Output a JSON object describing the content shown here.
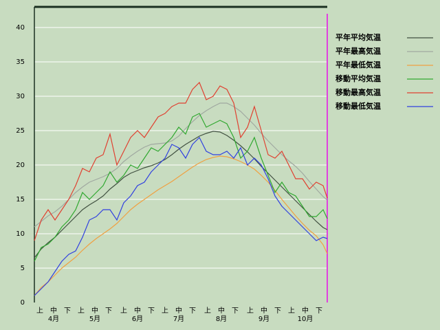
{
  "chart_data": {
    "type": "line",
    "x": [
      0,
      5,
      10,
      15,
      20,
      25,
      30,
      35,
      40,
      45,
      50,
      55,
      60,
      65,
      70,
      75,
      80,
      85,
      90,
      95,
      100,
      105,
      110,
      115,
      120,
      125,
      130,
      135,
      140,
      145,
      150,
      155,
      160,
      165,
      170,
      175,
      180,
      185,
      190,
      195,
      200,
      205,
      210,
      213
    ],
    "xlim": [
      0,
      213
    ],
    "xticks": [
      {
        "value": 4,
        "label": "上"
      },
      {
        "value": 14,
        "label": "中"
      },
      {
        "value": 24,
        "label": "下"
      },
      {
        "value": 34,
        "label": "上"
      },
      {
        "value": 44,
        "label": "中"
      },
      {
        "value": 54,
        "label": "下"
      },
      {
        "value": 65,
        "label": "上"
      },
      {
        "value": 75,
        "label": "中"
      },
      {
        "value": 85,
        "label": "下"
      },
      {
        "value": 95,
        "label": "上"
      },
      {
        "value": 105,
        "label": "中"
      },
      {
        "value": 115,
        "label": "下"
      },
      {
        "value": 126,
        "label": "上"
      },
      {
        "value": 136,
        "label": "中"
      },
      {
        "value": 146,
        "label": "下"
      },
      {
        "value": 157,
        "label": "上"
      },
      {
        "value": 167,
        "label": "中"
      },
      {
        "value": 177,
        "label": "下"
      },
      {
        "value": 187,
        "label": "上"
      },
      {
        "value": 197,
        "label": "中"
      },
      {
        "value": 207,
        "label": "下"
      }
    ],
    "month_ticks": [
      {
        "value": 14,
        "label": "4月"
      },
      {
        "value": 44,
        "label": "5月"
      },
      {
        "value": 75,
        "label": "6月"
      },
      {
        "value": 105,
        "label": "7月"
      },
      {
        "value": 136,
        "label": "8月"
      },
      {
        "value": 167,
        "label": "9月"
      },
      {
        "value": 197,
        "label": "10月"
      }
    ],
    "ylim": [
      0,
      43
    ],
    "yticks": [
      0,
      5,
      10,
      15,
      20,
      25,
      30,
      35,
      40
    ],
    "grid": true,
    "legend": "top-right",
    "series": [
      {
        "name": "平年平均気温",
        "color": "#405040",
        "values": [
          6.5,
          7.8,
          8.7,
          9.5,
          10.5,
          11.5,
          12.5,
          13.5,
          14.2,
          14.8,
          15.5,
          16.5,
          17.3,
          18.2,
          18.8,
          19.2,
          19.6,
          19.9,
          20.3,
          20.8,
          21.5,
          22.3,
          23.0,
          23.6,
          24.2,
          24.6,
          24.9,
          24.8,
          24.3,
          23.6,
          22.8,
          21.9,
          20.9,
          19.8,
          18.8,
          17.8,
          16.8,
          15.8,
          14.8,
          13.8,
          12.8,
          11.8,
          10.9,
          10.6
        ]
      },
      {
        "name": "平年最高気温",
        "color": "#a0a8a0",
        "values": [
          11,
          11.8,
          12.6,
          13.2,
          14,
          15,
          16,
          16.8,
          17.5,
          17.9,
          18.3,
          18.8,
          19.5,
          20.5,
          21.3,
          22,
          22.6,
          23,
          23.1,
          23.2,
          23.5,
          24.2,
          25.3,
          26.3,
          27.2,
          27.9,
          28.5,
          29,
          29,
          28.5,
          27.8,
          26.8,
          25.8,
          24.6,
          23.5,
          22.5,
          21.5,
          20.6,
          19.8,
          18.8,
          17.6,
          16.5,
          15.4,
          14.9
        ]
      },
      {
        "name": "平年最低気温",
        "color": "#f0a040",
        "values": [
          1,
          2.2,
          3,
          4,
          5,
          5.8,
          6.6,
          7.6,
          8.5,
          9.3,
          10,
          10.7,
          11.5,
          12.5,
          13.5,
          14.3,
          15,
          15.7,
          16.4,
          17,
          17.6,
          18.3,
          19,
          19.7,
          20.3,
          20.8,
          21.1,
          21.3,
          21.2,
          20.9,
          20.5,
          20,
          19.4,
          18.5,
          17.5,
          16.3,
          15,
          13.8,
          12.6,
          11.5,
          10.5,
          9.7,
          8.4,
          7.1
        ]
      },
      {
        "name": "移動平均気温",
        "color": "#30a830",
        "values": [
          6,
          8,
          8.5,
          9.5,
          11,
          12,
          13.5,
          16,
          15,
          16,
          17,
          19,
          17.5,
          18.5,
          20,
          19.5,
          21,
          22.5,
          22,
          23,
          24,
          25.5,
          24.5,
          27,
          27.5,
          25.5,
          26,
          26.5,
          26,
          24,
          21,
          22,
          24,
          21,
          18.5,
          16,
          17.5,
          16,
          15.5,
          14,
          12.5,
          12.5,
          13.5,
          12.2
        ]
      },
      {
        "name": "移動最高気温",
        "color": "#e04030",
        "values": [
          9,
          12,
          13.5,
          12,
          13.5,
          15,
          17,
          19.5,
          19,
          21,
          21.5,
          24.5,
          20,
          22,
          24,
          25,
          24,
          25.5,
          27,
          27.5,
          28.5,
          29,
          29,
          31,
          32,
          29.5,
          30,
          31.5,
          31,
          29,
          24,
          25.5,
          28.5,
          25,
          21.5,
          21,
          22,
          20,
          18,
          18,
          16.5,
          17.5,
          17,
          15.2
        ]
      },
      {
        "name": "移動最低気温",
        "color": "#3040e0",
        "values": [
          1,
          2,
          3,
          4.5,
          6,
          7,
          7.5,
          9.5,
          12,
          12.5,
          13.5,
          13.5,
          12,
          14.5,
          15.5,
          17,
          17.5,
          19,
          20,
          21,
          23,
          22.5,
          21,
          23,
          24,
          22,
          21.5,
          21.5,
          22,
          21,
          22.5,
          20,
          21,
          20,
          18,
          15.5,
          14,
          13,
          12,
          11,
          10,
          9,
          9.5,
          9.3
        ]
      }
    ]
  }
}
